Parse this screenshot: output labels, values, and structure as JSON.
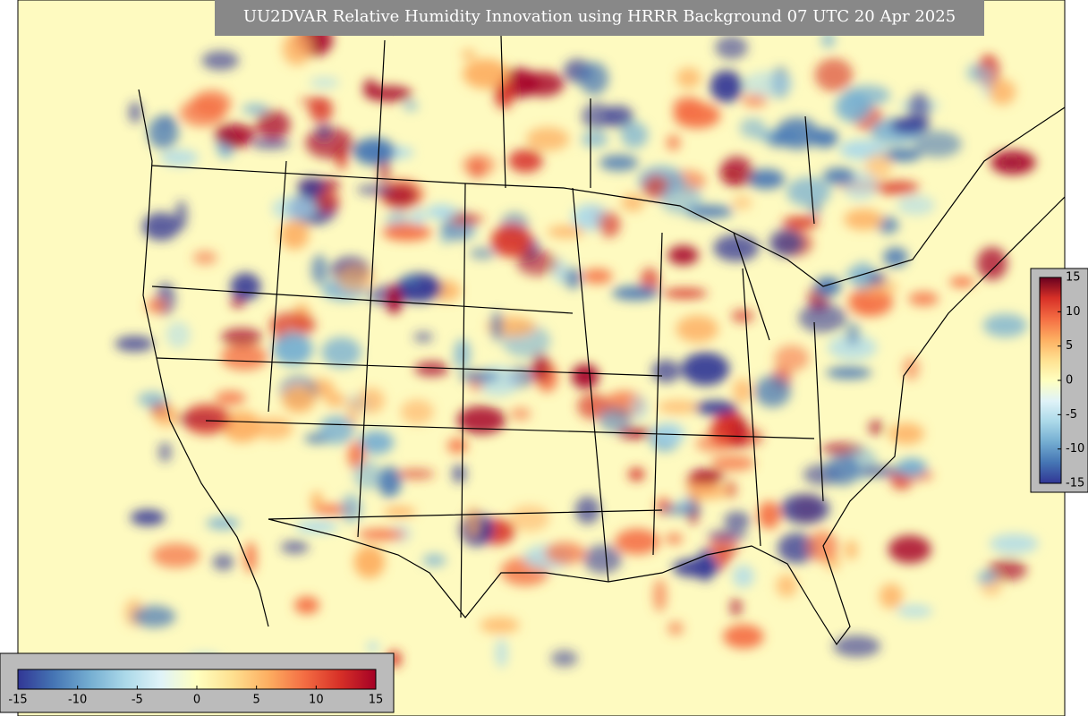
{
  "title": "UU2DVAR Relative Humidity Innovation using HRRR Background 07 UTC 20 Apr 2025",
  "colorbars": [
    {
      "orientation": "horizontal",
      "range": [
        -15,
        15
      ],
      "ticks": [
        -15,
        -10,
        -5,
        0,
        5,
        10,
        15
      ],
      "colors": [
        "#313695",
        "#4575b4",
        "#74add1",
        "#abd9e9",
        "#e0f3f8",
        "#ffffbf",
        "#fee090",
        "#fdae61",
        "#f46d43",
        "#d73027",
        "#a50026"
      ]
    },
    {
      "orientation": "vertical",
      "range": [
        -15,
        15
      ],
      "ticks": [
        15,
        10,
        5,
        0,
        -5,
        -10,
        -15
      ],
      "colors": [
        "#313695",
        "#4575b4",
        "#74add1",
        "#abd9e9",
        "#e0f3f8",
        "#ffffbf",
        "#fee090",
        "#fdae61",
        "#f46d43",
        "#d73027",
        "#67001f"
      ]
    }
  ]
}
